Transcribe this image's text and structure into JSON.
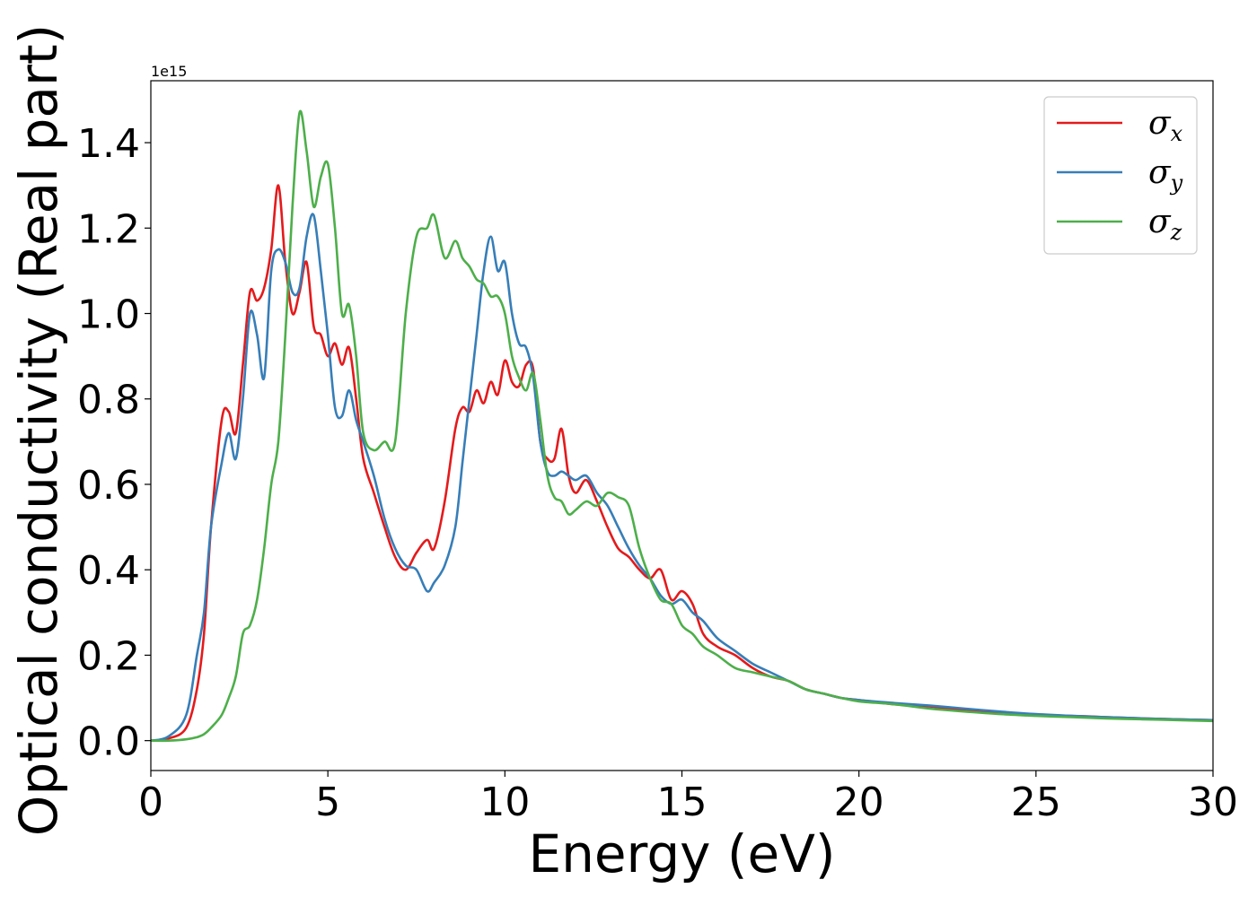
{
  "chart_data": {
    "type": "line",
    "title": "",
    "xlabel": "Energy (eV)",
    "ylabel": "Optical conductivity (Real part)",
    "y_offset_label": "1e15",
    "xlim": [
      0,
      30
    ],
    "ylim": [
      -0.07,
      1.545
    ],
    "xticks": [
      0,
      5,
      10,
      15,
      20,
      25,
      30
    ],
    "xtick_labels": [
      "0",
      "5",
      "10",
      "15",
      "20",
      "25",
      "30"
    ],
    "yticks": [
      0.0,
      0.2,
      0.4,
      0.6,
      0.8,
      1.0,
      1.2,
      1.4
    ],
    "ytick_labels": [
      "0.0",
      "0.2",
      "0.4",
      "0.6",
      "0.8",
      "1.0",
      "1.2",
      "1.4"
    ],
    "grid": false,
    "legend_position": "top-right",
    "series": [
      {
        "name": "σx",
        "symbol": "σ",
        "subscript": "x",
        "color": "#e41a1c",
        "x": [
          0,
          0.5,
          1.0,
          1.3,
          1.5,
          1.7,
          2.0,
          2.2,
          2.4,
          2.6,
          2.8,
          3.0,
          3.2,
          3.4,
          3.6,
          3.8,
          4.0,
          4.2,
          4.4,
          4.6,
          4.8,
          5.0,
          5.2,
          5.4,
          5.6,
          5.8,
          6.0,
          6.3,
          6.6,
          6.9,
          7.2,
          7.5,
          7.8,
          8.0,
          8.3,
          8.6,
          8.8,
          9.0,
          9.2,
          9.4,
          9.6,
          9.8,
          10.0,
          10.2,
          10.4,
          10.6,
          10.8,
          11.0,
          11.2,
          11.4,
          11.6,
          11.8,
          12.0,
          12.3,
          12.6,
          12.9,
          13.2,
          13.5,
          13.8,
          14.1,
          14.4,
          14.7,
          15.0,
          15.3,
          15.6,
          16.0,
          16.5,
          17.0,
          17.5,
          18.0,
          18.5,
          19.0,
          19.5,
          20.0,
          21.0,
          22.0,
          23.0,
          24.0,
          25.0,
          26.0,
          27.0,
          28.0,
          29.0,
          30.0
        ],
        "values": [
          0.0,
          0.005,
          0.03,
          0.12,
          0.25,
          0.5,
          0.75,
          0.77,
          0.72,
          0.88,
          1.05,
          1.03,
          1.06,
          1.15,
          1.3,
          1.12,
          1.0,
          1.05,
          1.12,
          0.97,
          0.95,
          0.9,
          0.93,
          0.88,
          0.92,
          0.8,
          0.66,
          0.58,
          0.5,
          0.43,
          0.4,
          0.44,
          0.47,
          0.45,
          0.56,
          0.73,
          0.78,
          0.77,
          0.82,
          0.79,
          0.84,
          0.81,
          0.89,
          0.84,
          0.83,
          0.88,
          0.87,
          0.7,
          0.66,
          0.66,
          0.73,
          0.62,
          0.58,
          0.61,
          0.56,
          0.5,
          0.45,
          0.43,
          0.4,
          0.38,
          0.4,
          0.33,
          0.35,
          0.32,
          0.25,
          0.22,
          0.2,
          0.17,
          0.15,
          0.14,
          0.12,
          0.11,
          0.1,
          0.095,
          0.085,
          0.08,
          0.07,
          0.065,
          0.06,
          0.058,
          0.055,
          0.052,
          0.05,
          0.048
        ]
      },
      {
        "name": "σy",
        "symbol": "σ",
        "subscript": "y",
        "color": "#377eb8",
        "x": [
          0,
          0.5,
          1.0,
          1.3,
          1.5,
          1.7,
          2.0,
          2.2,
          2.4,
          2.6,
          2.8,
          3.0,
          3.2,
          3.4,
          3.6,
          3.8,
          4.0,
          4.2,
          4.4,
          4.6,
          4.8,
          5.0,
          5.2,
          5.4,
          5.6,
          5.8,
          6.0,
          6.3,
          6.6,
          6.9,
          7.2,
          7.5,
          7.8,
          8.0,
          8.3,
          8.6,
          8.8,
          9.0,
          9.2,
          9.4,
          9.6,
          9.8,
          10.0,
          10.2,
          10.4,
          10.6,
          10.8,
          11.0,
          11.2,
          11.4,
          11.6,
          11.8,
          12.0,
          12.3,
          12.6,
          12.9,
          13.2,
          13.5,
          13.8,
          14.1,
          14.4,
          14.7,
          15.0,
          15.3,
          15.6,
          16.0,
          16.5,
          17.0,
          17.5,
          18.0,
          18.5,
          19.0,
          19.5,
          20.0,
          21.0,
          22.0,
          23.0,
          24.0,
          25.0,
          26.0,
          27.0,
          28.0,
          29.0,
          30.0
        ],
        "values": [
          0.0,
          0.01,
          0.06,
          0.2,
          0.3,
          0.5,
          0.65,
          0.72,
          0.66,
          0.8,
          1.0,
          0.95,
          0.85,
          1.1,
          1.15,
          1.12,
          1.05,
          1.06,
          1.18,
          1.23,
          1.1,
          0.95,
          0.78,
          0.76,
          0.82,
          0.75,
          0.7,
          0.62,
          0.52,
          0.45,
          0.41,
          0.4,
          0.35,
          0.37,
          0.41,
          0.5,
          0.65,
          0.8,
          0.95,
          1.1,
          1.18,
          1.1,
          1.12,
          1.0,
          0.93,
          0.92,
          0.85,
          0.7,
          0.63,
          0.62,
          0.63,
          0.62,
          0.61,
          0.62,
          0.58,
          0.55,
          0.5,
          0.45,
          0.41,
          0.38,
          0.34,
          0.32,
          0.33,
          0.3,
          0.28,
          0.24,
          0.21,
          0.18,
          0.16,
          0.14,
          0.12,
          0.11,
          0.1,
          0.095,
          0.088,
          0.082,
          0.075,
          0.068,
          0.062,
          0.058,
          0.055,
          0.052,
          0.05,
          0.048
        ]
      },
      {
        "name": "σz",
        "symbol": "σ",
        "subscript": "z",
        "color": "#4daf4a",
        "x": [
          0,
          0.5,
          1.0,
          1.3,
          1.5,
          1.7,
          2.0,
          2.2,
          2.4,
          2.6,
          2.8,
          3.0,
          3.2,
          3.4,
          3.6,
          3.8,
          4.0,
          4.2,
          4.4,
          4.6,
          4.8,
          5.0,
          5.2,
          5.4,
          5.6,
          5.8,
          6.0,
          6.3,
          6.6,
          6.9,
          7.2,
          7.5,
          7.8,
          8.0,
          8.3,
          8.6,
          8.8,
          9.0,
          9.2,
          9.4,
          9.6,
          9.8,
          10.0,
          10.2,
          10.4,
          10.6,
          10.8,
          11.0,
          11.2,
          11.4,
          11.6,
          11.8,
          12.0,
          12.3,
          12.6,
          12.9,
          13.2,
          13.5,
          13.8,
          14.1,
          14.4,
          14.7,
          15.0,
          15.3,
          15.6,
          16.0,
          16.5,
          17.0,
          17.5,
          18.0,
          18.5,
          19.0,
          19.5,
          20.0,
          21.0,
          22.0,
          23.0,
          24.0,
          25.0,
          26.0,
          27.0,
          28.0,
          29.0,
          30.0
        ],
        "values": [
          0.0,
          0.0,
          0.003,
          0.008,
          0.015,
          0.03,
          0.06,
          0.1,
          0.15,
          0.25,
          0.27,
          0.33,
          0.45,
          0.6,
          0.7,
          0.95,
          1.25,
          1.47,
          1.38,
          1.25,
          1.32,
          1.35,
          1.2,
          1.0,
          1.02,
          0.9,
          0.72,
          0.68,
          0.7,
          0.7,
          1.0,
          1.18,
          1.2,
          1.23,
          1.13,
          1.17,
          1.13,
          1.11,
          1.08,
          1.07,
          1.04,
          1.04,
          1.0,
          0.9,
          0.85,
          0.82,
          0.86,
          0.75,
          0.62,
          0.57,
          0.56,
          0.53,
          0.54,
          0.56,
          0.55,
          0.58,
          0.57,
          0.55,
          0.45,
          0.38,
          0.33,
          0.32,
          0.27,
          0.25,
          0.22,
          0.2,
          0.17,
          0.16,
          0.15,
          0.14,
          0.12,
          0.11,
          0.1,
          0.092,
          0.085,
          0.075,
          0.068,
          0.062,
          0.058,
          0.055,
          0.052,
          0.05,
          0.048,
          0.046
        ]
      }
    ]
  }
}
